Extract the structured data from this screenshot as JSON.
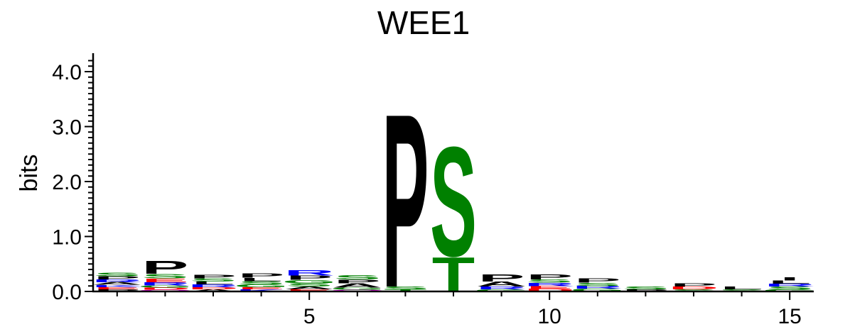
{
  "chart_data": {
    "type": "sequence-logo",
    "title": "WEE1",
    "ylabel": "bits",
    "xlabel": "",
    "ylim": [
      0,
      4.3
    ],
    "xlim": [
      0.5,
      15.5
    ],
    "yticks": [
      "0.0",
      "1.0",
      "2.0",
      "3.0",
      "4.0"
    ],
    "xticks": [
      "5",
      "10",
      "15"
    ],
    "colors": {
      "P": "#000000",
      "A": "#000000",
      "I": "#000000",
      "L": "#000000",
      "V": "#000000",
      "F": "#000000",
      "M": "#000000",
      "S": "#008000",
      "T": "#008000",
      "G": "#008000",
      "C": "#008000",
      "Y": "#008000",
      "R": "#0000ff",
      "K": "#0000ff",
      "H": "#0000ff",
      "D": "#ff0000",
      "E": "#ff0000",
      "N": "#cc00cc",
      "Q": "#cc00cc",
      "W": "#000000"
    },
    "positions": [
      {
        "pos": 1,
        "letters": [
          [
            "P",
            0.04
          ],
          [
            "E",
            0.04
          ],
          [
            "K",
            0.04
          ],
          [
            "A",
            0.05
          ],
          [
            "R",
            0.05
          ],
          [
            "P",
            0.06
          ],
          [
            "S",
            0.07
          ]
        ]
      },
      {
        "pos": 2,
        "letters": [
          [
            "Q",
            0.03
          ],
          [
            "D",
            0.04
          ],
          [
            "G",
            0.04
          ],
          [
            "R",
            0.06
          ],
          [
            "E",
            0.07
          ],
          [
            "S",
            0.08
          ],
          [
            "P",
            0.24
          ]
        ]
      },
      {
        "pos": 3,
        "letters": [
          [
            "A",
            0.04
          ],
          [
            "D",
            0.04
          ],
          [
            "R",
            0.05
          ],
          [
            "L",
            0.05
          ],
          [
            "S",
            0.06
          ],
          [
            "P",
            0.07
          ]
        ]
      },
      {
        "pos": 4,
        "letters": [
          [
            "K",
            0.04
          ],
          [
            "E",
            0.04
          ],
          [
            "G",
            0.05
          ],
          [
            "S",
            0.06
          ],
          [
            "L",
            0.06
          ],
          [
            "P",
            0.08
          ]
        ]
      },
      {
        "pos": 5,
        "letters": [
          [
            "E",
            0.04
          ],
          [
            "A",
            0.05
          ],
          [
            "S",
            0.06
          ],
          [
            "G",
            0.06
          ],
          [
            "P",
            0.08
          ],
          [
            "R",
            0.1
          ]
        ]
      },
      {
        "pos": 6,
        "letters": [
          [
            "Q",
            0.03
          ],
          [
            "G",
            0.04
          ],
          [
            "A",
            0.08
          ],
          [
            "P",
            0.07
          ],
          [
            "S",
            0.08
          ]
        ]
      },
      {
        "pos": 7,
        "letters": [
          [
            "T",
            0.04
          ],
          [
            "S",
            0.05
          ],
          [
            "P",
            3.25
          ]
        ]
      },
      {
        "pos": 8,
        "letters": [
          [
            "T",
            0.65
          ],
          [
            "S",
            2.05
          ]
        ]
      },
      {
        "pos": 9,
        "letters": [
          [
            "G",
            0.04
          ],
          [
            "R",
            0.05
          ],
          [
            "A",
            0.09
          ],
          [
            "P",
            0.14
          ]
        ]
      },
      {
        "pos": 10,
        "letters": [
          [
            "D",
            0.05
          ],
          [
            "E",
            0.05
          ],
          [
            "R",
            0.06
          ],
          [
            "S",
            0.06
          ],
          [
            "P",
            0.09
          ]
        ]
      },
      {
        "pos": 11,
        "letters": [
          [
            "G",
            0.05
          ],
          [
            "R",
            0.05
          ],
          [
            "S",
            0.06
          ],
          [
            "P",
            0.08
          ]
        ]
      },
      {
        "pos": 12,
        "letters": [
          [
            "P",
            0.04
          ],
          [
            "S",
            0.05
          ]
        ]
      },
      {
        "pos": 13,
        "letters": [
          [
            "S",
            0.04
          ],
          [
            "D",
            0.05
          ],
          [
            "P",
            0.06
          ]
        ]
      },
      {
        "pos": 14,
        "letters": [
          [
            "S",
            0.04
          ],
          [
            "L",
            0.05
          ]
        ]
      },
      {
        "pos": 15,
        "letters": [
          [
            "G",
            0.04
          ],
          [
            "S",
            0.05
          ],
          [
            "R",
            0.05
          ],
          [
            "L",
            0.06
          ],
          [
            "I",
            0.06
          ]
        ]
      }
    ]
  }
}
